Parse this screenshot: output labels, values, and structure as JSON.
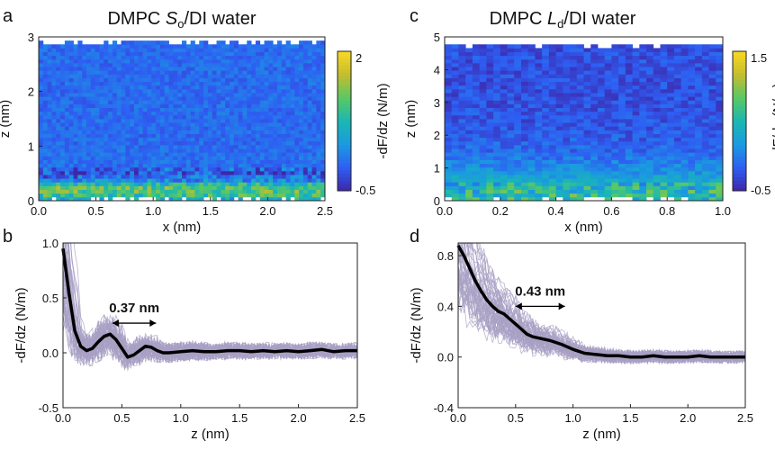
{
  "panels": [
    {
      "letter": "a",
      "title_prefix": "DMPC ",
      "title_sym": "S",
      "title_sub": "o",
      "title_suffix": "/DI water"
    },
    {
      "letter": "b"
    },
    {
      "letter": "c",
      "title_prefix": "DMPC ",
      "title_sym": "L",
      "title_sub": "d",
      "title_suffix": "/DI water"
    },
    {
      "letter": "d"
    }
  ],
  "chart_data": [
    {
      "id": "a",
      "type": "heatmap",
      "xlabel": "x (nm)",
      "ylabel": "z (nm)",
      "xlim": [
        0,
        2.5
      ],
      "ylim": [
        0,
        3
      ],
      "xticks": [
        "0.0",
        "0.5",
        "1.0",
        "1.5",
        "2.0",
        "2.5"
      ],
      "yticks": [
        "0",
        "1",
        "2",
        "3"
      ],
      "colorbar": {
        "label": "-dF/dz (N/m)",
        "range": [
          -0.5,
          2
        ],
        "ticks": [
          "2",
          "-0.5"
        ]
      },
      "colormap": [
        "#3e26a8",
        "#2e5ef3",
        "#1a9ae0",
        "#1bb7b3",
        "#59c864",
        "#c3bd2e",
        "#f9d823"
      ],
      "surface_top_nm": 2.95,
      "profile_z": [
        0.0,
        0.1,
        0.2,
        0.25,
        0.3,
        0.35,
        0.4,
        0.5,
        0.6,
        0.8,
        1.0,
        1.5,
        2.0,
        2.5,
        3.0
      ],
      "profile_value": [
        0.5,
        0.9,
        1.2,
        1.1,
        0.8,
        0.4,
        0.15,
        -0.2,
        0.0,
        0.05,
        0.0,
        0.0,
        0.0,
        0.0,
        0.0
      ]
    },
    {
      "id": "b",
      "type": "line",
      "xlabel": "z (nm)",
      "ylabel": "-dF/dz (N/m)",
      "xlim": [
        0,
        2.5
      ],
      "ylim": [
        -0.5,
        1.0
      ],
      "xticks": [
        "0.0",
        "0.5",
        "1.0",
        "1.5",
        "2.0",
        "2.5"
      ],
      "yticks": [
        "-0.5",
        "0.0",
        "0.5",
        "1.0"
      ],
      "annotation": {
        "text": "0.37 nm",
        "from_x": 0.42,
        "to_x": 0.79,
        "y": 0.27
      },
      "series": [
        {
          "role": "mean",
          "color": "#000000",
          "x": [
            0.0,
            0.05,
            0.1,
            0.15,
            0.2,
            0.25,
            0.3,
            0.35,
            0.4,
            0.45,
            0.5,
            0.55,
            0.6,
            0.65,
            0.7,
            0.75,
            0.8,
            0.85,
            0.9,
            1.0,
            1.1,
            1.2,
            1.3,
            1.4,
            1.5,
            1.6,
            1.7,
            1.8,
            1.9,
            2.0,
            2.1,
            2.2,
            2.3,
            2.4,
            2.5
          ],
          "y": [
            0.95,
            0.55,
            0.2,
            0.06,
            0.02,
            0.04,
            0.1,
            0.15,
            0.17,
            0.12,
            0.04,
            -0.04,
            -0.02,
            0.02,
            0.06,
            0.05,
            0.02,
            0.0,
            0.0,
            0.01,
            0.02,
            0.01,
            0.01,
            0.02,
            0.02,
            0.01,
            0.02,
            0.01,
            0.02,
            0.01,
            0.02,
            0.03,
            0.01,
            0.02,
            0.02
          ]
        }
      ],
      "trace_color": "#a9a0c4"
    },
    {
      "id": "c",
      "type": "heatmap",
      "xlabel": "x (nm)",
      "ylabel": "z (nm)",
      "xlim": [
        0,
        1.0
      ],
      "ylim": [
        0,
        5
      ],
      "xticks": [
        "0.0",
        "0.2",
        "0.4",
        "0.6",
        "0.8",
        "1.0"
      ],
      "yticks": [
        "0",
        "1",
        "2",
        "3",
        "4",
        "5"
      ],
      "colorbar": {
        "label": "-dF/dz (N/m)",
        "range": [
          -0.5,
          1.5
        ],
        "ticks": [
          "1.5",
          "-0.5"
        ]
      },
      "colormap": [
        "#3e26a8",
        "#2e5ef3",
        "#1a9ae0",
        "#1bb7b3",
        "#59c864",
        "#c3bd2e",
        "#f9d823"
      ],
      "surface_top_nm": 4.8,
      "profile_z": [
        0.0,
        0.2,
        0.4,
        0.6,
        0.8,
        1.0,
        1.2,
        1.5,
        2.0,
        3.0,
        5.0
      ],
      "profile_value": [
        0.6,
        0.55,
        0.45,
        0.35,
        0.2,
        0.1,
        0.0,
        -0.1,
        -0.2,
        -0.25,
        -0.25
      ]
    },
    {
      "id": "d",
      "type": "line",
      "xlabel": "z (nm)",
      "ylabel": "-dF/dz (N/m)",
      "xlim": [
        0,
        2.5
      ],
      "ylim": [
        -0.4,
        0.9
      ],
      "xticks": [
        "0.0",
        "0.5",
        "1.0",
        "1.5",
        "2.0",
        "2.5"
      ],
      "yticks": [
        "-0.4",
        "0.0",
        "0.4",
        "0.8"
      ],
      "annotation": {
        "text": "0.43 nm",
        "from_x": 0.5,
        "to_x": 0.93,
        "y": 0.4
      },
      "series": [
        {
          "role": "mean",
          "color": "#000000",
          "x": [
            0.0,
            0.05,
            0.1,
            0.15,
            0.2,
            0.25,
            0.3,
            0.35,
            0.4,
            0.45,
            0.5,
            0.55,
            0.6,
            0.65,
            0.7,
            0.8,
            0.9,
            1.0,
            1.1,
            1.2,
            1.3,
            1.4,
            1.5,
            1.6,
            1.7,
            1.8,
            1.9,
            2.0,
            2.1,
            2.2,
            2.3,
            2.4,
            2.5
          ],
          "y": [
            0.88,
            0.8,
            0.7,
            0.6,
            0.52,
            0.45,
            0.4,
            0.36,
            0.34,
            0.3,
            0.26,
            0.22,
            0.18,
            0.16,
            0.15,
            0.13,
            0.1,
            0.06,
            0.03,
            0.02,
            0.01,
            0.01,
            0.0,
            0.0,
            0.01,
            0.0,
            0.0,
            0.0,
            0.01,
            0.0,
            0.0,
            0.0,
            0.0
          ]
        }
      ],
      "trace_color": "#a9a0c4"
    }
  ]
}
